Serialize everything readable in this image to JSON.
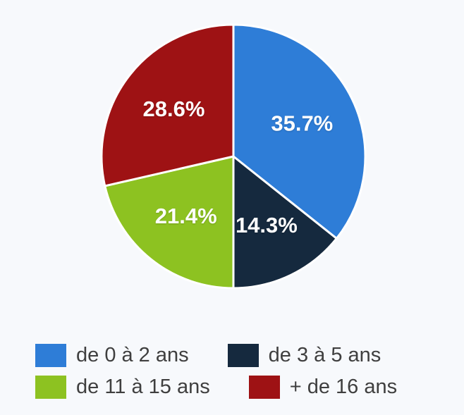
{
  "chart_data": {
    "type": "pie",
    "title": "",
    "legend_position": "bottom",
    "direction": "clockwise",
    "start_angle_deg": 0,
    "background_color": "#f7f9fc",
    "separator_color": "#ffffff",
    "label_color": "#ffffff",
    "legend_text_color": "#3f3f3f",
    "slices": [
      {
        "label": "de 0 à 2 ans",
        "value": 35.7,
        "pct_label": "35.7%",
        "color": "#2e7dd7"
      },
      {
        "label": "de 3 à 5 ans",
        "value": 14.3,
        "pct_label": "14.3%",
        "color": "#15293e"
      },
      {
        "label": "de 11 à 15 ans",
        "value": 21.4,
        "pct_label": "21.4%",
        "color": "#8dc221"
      },
      {
        "label": "+ de 16 ans",
        "value": 28.6,
        "pct_label": "28.6%",
        "color": "#9e1214"
      }
    ]
  }
}
